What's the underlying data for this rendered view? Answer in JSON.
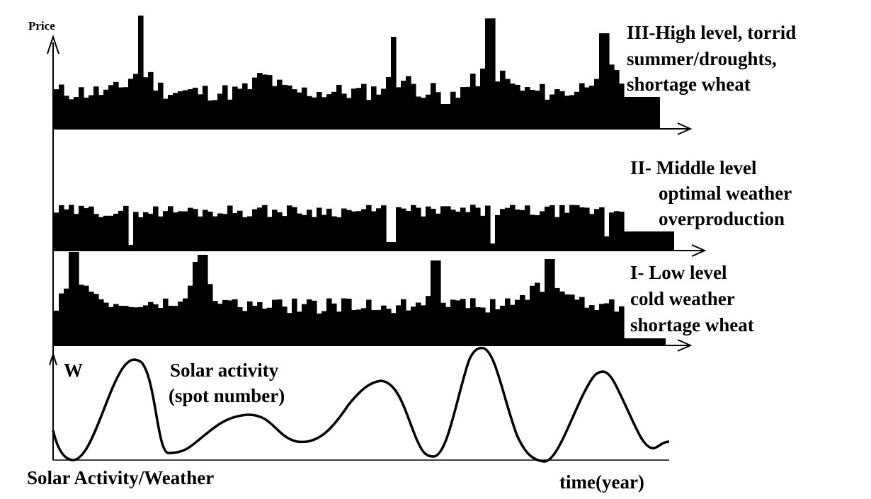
{
  "y_axis_label": "Price",
  "panels": [
    {
      "id": "high",
      "label_lines": [
        "III-High level, torrid",
        "summer/droughts,",
        "shortage wheat"
      ],
      "description": "price histogram with sharp spikes"
    },
    {
      "id": "middle",
      "label_lines": [
        "II- Middle level",
        "optimal weather",
        "overproduction"
      ],
      "description": "flat price histogram"
    },
    {
      "id": "low",
      "label_lines": [
        "I- Low level",
        "cold weather",
        "shortage wheat"
      ],
      "description": "price histogram with spikes"
    }
  ],
  "solar": {
    "axis_label": "W",
    "title_lines": [
      "Solar activity",
      "(spot number)"
    ],
    "cycles": 5
  },
  "x_axis_label": "time(year)",
  "footer_label": "Solar Activity/Weather",
  "colors": {
    "ink": "#000000",
    "background": "#ffffff"
  }
}
